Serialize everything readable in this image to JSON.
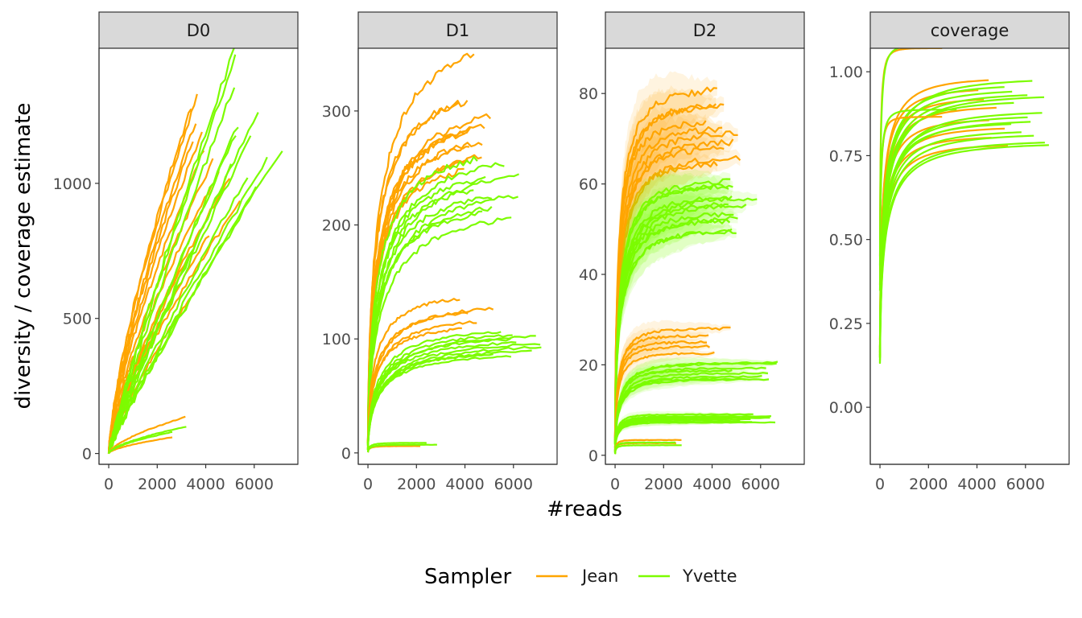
{
  "chart_data": {
    "type": "line",
    "xlabel": "#reads",
    "ylabel": "diversity / coverage estimate",
    "grid": false,
    "legend_placement": "bottom",
    "legend": {
      "title": "Sampler",
      "entries": [
        {
          "name": "Jean",
          "color": "#FFA500"
        },
        {
          "name": "Yvette",
          "color": "#7CFC00"
        }
      ]
    },
    "panels": [
      {
        "strip": "D0",
        "xlim": [
          -400,
          7800
        ],
        "ylim": [
          -40,
          1500
        ],
        "x_ticks": [
          "0",
          "2000",
          "4000",
          "6000"
        ],
        "y_ticks": [
          {
            "v": 0,
            "label": "0"
          },
          {
            "v": 500,
            "label": "500"
          },
          {
            "v": 1000,
            "label": "1000"
          }
        ],
        "groups": [
          {
            "sampler": "Jean",
            "A": 1180,
            "p": 0.72,
            "T": 4600,
            "n": 8
          },
          {
            "sampler": "Jean",
            "A": 920,
            "p": 0.75,
            "T": 5500,
            "n": 3
          },
          {
            "sampler": "Jean",
            "A": 660,
            "p": 0.78,
            "T": 3500,
            "n": 2
          },
          {
            "sampler": "Yvette",
            "A": 1420,
            "p": 0.9,
            "T": 6400,
            "n": 4
          },
          {
            "sampler": "Yvette",
            "A": 1100,
            "p": 0.9,
            "T": 7000,
            "n": 8
          },
          {
            "sampler": "Jean",
            "A": 135,
            "p": 0.65,
            "T": 3300,
            "n": 1
          },
          {
            "sampler": "Jean",
            "A": 60,
            "p": 0.62,
            "T": 2700,
            "n": 1
          },
          {
            "sampler": "Yvette",
            "A": 88,
            "p": 0.62,
            "T": 3200,
            "n": 2
          }
        ]
      },
      {
        "strip": "D1",
        "xlim": [
          -400,
          7800
        ],
        "ylim": [
          -10,
          355
        ],
        "x_ticks": [
          "0",
          "2000",
          "4000",
          "6000"
        ],
        "y_ticks": [
          {
            "v": 0,
            "label": "0"
          },
          {
            "v": 100,
            "label": "100"
          },
          {
            "v": 200,
            "label": "200"
          },
          {
            "v": 300,
            "label": "300"
          }
        ],
        "groups": [
          {
            "sampler": "Jean",
            "A": 290,
            "p": 0.35,
            "T": 5000,
            "n": 10
          },
          {
            "sampler": "Jean",
            "A": 330,
            "p": 0.4,
            "T": 4500,
            "n": 2
          },
          {
            "sampler": "Yvette",
            "A": 240,
            "p": 0.35,
            "T": 6000,
            "n": 10
          },
          {
            "sampler": "Jean",
            "A": 125,
            "p": 0.3,
            "T": 5000,
            "n": 5
          },
          {
            "sampler": "Yvette",
            "A": 98,
            "p": 0.3,
            "T": 7000,
            "n": 10
          },
          {
            "sampler": "Jean",
            "A": 6,
            "p": 0.1,
            "T": 3000,
            "n": 1
          },
          {
            "sampler": "Yvette",
            "A": 8,
            "p": 0.1,
            "T": 3200,
            "n": 2
          }
        ]
      },
      {
        "strip": "D2",
        "xlim": [
          -400,
          7800
        ],
        "ylim": [
          -2,
          90
        ],
        "x_ticks": [
          "0",
          "2000",
          "4000",
          "6000"
        ],
        "y_ticks": [
          {
            "v": 0,
            "label": "0"
          },
          {
            "v": 20,
            "label": "20"
          },
          {
            "v": 40,
            "label": "40"
          },
          {
            "v": 60,
            "label": "60"
          },
          {
            "v": 80,
            "label": "80"
          }
        ],
        "groups": [
          {
            "sampler": "Jean",
            "A": 72,
            "p": 0.15,
            "T": 5000,
            "n": 10
          },
          {
            "sampler": "Yvette",
            "A": 55,
            "p": 0.15,
            "T": 6000,
            "n": 12
          },
          {
            "sampler": "Jean",
            "A": 25,
            "p": 0.1,
            "T": 5000,
            "n": 5
          },
          {
            "sampler": "Yvette",
            "A": 18.5,
            "p": 0.1,
            "T": 6500,
            "n": 8
          },
          {
            "sampler": "Yvette",
            "A": 8,
            "p": 0.05,
            "T": 7000,
            "n": 8
          },
          {
            "sampler": "Jean",
            "A": 3,
            "p": 0.05,
            "T": 3000,
            "n": 2
          },
          {
            "sampler": "Yvette",
            "A": 2.5,
            "p": 0.05,
            "T": 2700,
            "n": 2
          }
        ]
      },
      {
        "strip": "coverage",
        "xlim": [
          -400,
          7800
        ],
        "ylim": [
          -0.17,
          1.07
        ],
        "x_ticks": [
          "0",
          "2000",
          "4000",
          "6000"
        ],
        "y_ticks": [
          {
            "v": 0,
            "label": "0.00"
          },
          {
            "v": 0.25,
            "label": "0.25"
          },
          {
            "v": 0.5,
            "label": "0.50"
          },
          {
            "v": 0.75,
            "label": "0.75"
          },
          {
            "v": 1,
            "label": "1.00"
          }
        ],
        "groups": [
          {
            "sampler": "Jean",
            "A": 0.88,
            "p": 0.12,
            "T": 5500,
            "n": 8
          },
          {
            "sampler": "Yvette",
            "A": 0.88,
            "p": 0.13,
            "T": 6800,
            "n": 14
          },
          {
            "sampler": "Jean",
            "A": 0.97,
            "p": 0.03,
            "T": 3300,
            "n": 2
          },
          {
            "sampler": "Yvette",
            "A": 0.98,
            "p": 0.03,
            "T": 3200,
            "n": 2
          }
        ]
      }
    ]
  }
}
